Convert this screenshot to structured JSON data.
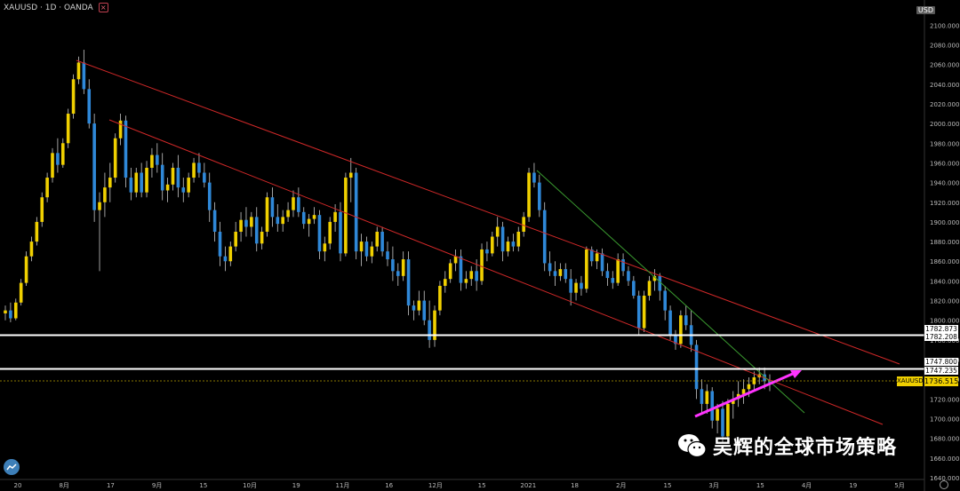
{
  "header": {
    "symbol": "XAUUSD · 1D · OANDA",
    "close_icon": "close-icon"
  },
  "price_axis": {
    "currency_badge": "USD",
    "ticks": [
      "2100.000",
      "2080.000",
      "2060.000",
      "2040.000",
      "2020.000",
      "2000.000",
      "1980.000",
      "1960.000",
      "1940.000",
      "1920.000",
      "1900.000",
      "1880.000",
      "1860.000",
      "1840.000",
      "1820.000",
      "1800.000",
      "1780.000",
      "1760.000",
      "1740.000",
      "1720.000",
      "1700.000",
      "1680.000",
      "1660.000",
      "1640.000"
    ],
    "hline_labels": [
      "1782.873",
      "1782.208",
      "1747.800",
      "1747.235"
    ],
    "current_symbol": "XAUUSD",
    "current_price": "1736.515"
  },
  "time_axis": {
    "ticks": [
      "20",
      "8月",
      "17",
      "9月",
      "15",
      "10月",
      "19",
      "11月",
      "16",
      "12月",
      "15",
      "2021",
      "18",
      "2月",
      "15",
      "3月",
      "15",
      "4月",
      "19",
      "5月"
    ]
  },
  "watermark": {
    "text": "吴辉的全球市场策略",
    "icon": "wechat-icon"
  },
  "colors": {
    "up": "#f0d000",
    "down": "#2f88d8",
    "background": "#000000",
    "channel": "#d02828",
    "trend": "#3a9a30",
    "arrow": "#ff33ff",
    "hline": "#ffffff"
  },
  "chart_data": {
    "type": "candlestick",
    "title": "XAUUSD · 1D · OANDA",
    "ylim": [
      1640,
      2110
    ],
    "candles": [
      [
        1807,
        1815,
        1800,
        1810
      ],
      [
        1810,
        1818,
        1798,
        1802
      ],
      [
        1802,
        1822,
        1800,
        1818
      ],
      [
        1818,
        1842,
        1815,
        1838
      ],
      [
        1838,
        1870,
        1835,
        1865
      ],
      [
        1865,
        1885,
        1860,
        1880
      ],
      [
        1880,
        1905,
        1876,
        1900
      ],
      [
        1900,
        1930,
        1895,
        1925
      ],
      [
        1925,
        1950,
        1920,
        1945
      ],
      [
        1945,
        1975,
        1940,
        1970
      ],
      [
        1970,
        1985,
        1950,
        1958
      ],
      [
        1958,
        1985,
        1955,
        1980
      ],
      [
        1980,
        2015,
        1975,
        2010
      ],
      [
        2010,
        2050,
        2005,
        2045
      ],
      [
        2045,
        2068,
        2040,
        2062
      ],
      [
        2062,
        2075,
        2030,
        2035
      ],
      [
        2035,
        2045,
        1995,
        2000
      ],
      [
        2000,
        2010,
        1900,
        1912
      ],
      [
        1912,
        1930,
        1850,
        1920
      ],
      [
        1920,
        1950,
        1905,
        1935
      ],
      [
        1935,
        1960,
        1920,
        1945
      ],
      [
        1945,
        1990,
        1940,
        1985
      ],
      [
        1985,
        2010,
        1978,
        2003
      ],
      [
        2003,
        2008,
        1935,
        1945
      ],
      [
        1945,
        1955,
        1922,
        1930
      ],
      [
        1930,
        1955,
        1925,
        1950
      ],
      [
        1950,
        1960,
        1925,
        1930
      ],
      [
        1930,
        1962,
        1925,
        1955
      ],
      [
        1955,
        1975,
        1945,
        1968
      ],
      [
        1968,
        1980,
        1950,
        1958
      ],
      [
        1958,
        1970,
        1922,
        1932
      ],
      [
        1932,
        1945,
        1920,
        1938
      ],
      [
        1938,
        1960,
        1932,
        1955
      ],
      [
        1955,
        1968,
        1925,
        1935
      ],
      [
        1935,
        1945,
        1920,
        1930
      ],
      [
        1930,
        1950,
        1925,
        1945
      ],
      [
        1945,
        1965,
        1940,
        1960
      ],
      [
        1960,
        1970,
        1945,
        1950
      ],
      [
        1950,
        1960,
        1935,
        1940
      ],
      [
        1940,
        1950,
        1900,
        1912
      ],
      [
        1912,
        1920,
        1880,
        1890
      ],
      [
        1890,
        1900,
        1855,
        1865
      ],
      [
        1865,
        1875,
        1850,
        1860
      ],
      [
        1860,
        1880,
        1855,
        1875
      ],
      [
        1875,
        1900,
        1870,
        1890
      ],
      [
        1890,
        1910,
        1880,
        1902
      ],
      [
        1902,
        1915,
        1885,
        1895
      ],
      [
        1895,
        1910,
        1885,
        1905
      ],
      [
        1905,
        1915,
        1870,
        1878
      ],
      [
        1878,
        1895,
        1872,
        1890
      ],
      [
        1890,
        1930,
        1885,
        1925
      ],
      [
        1925,
        1935,
        1895,
        1905
      ],
      [
        1905,
        1918,
        1890,
        1898
      ],
      [
        1898,
        1912,
        1890,
        1905
      ],
      [
        1905,
        1920,
        1900,
        1912
      ],
      [
        1912,
        1932,
        1905,
        1925
      ],
      [
        1925,
        1935,
        1905,
        1910
      ],
      [
        1910,
        1915,
        1893,
        1898
      ],
      [
        1898,
        1908,
        1885,
        1903
      ],
      [
        1903,
        1915,
        1898,
        1907
      ],
      [
        1907,
        1912,
        1862,
        1870
      ],
      [
        1870,
        1885,
        1860,
        1878
      ],
      [
        1878,
        1905,
        1872,
        1900
      ],
      [
        1900,
        1918,
        1890,
        1910
      ],
      [
        1910,
        1920,
        1860,
        1868
      ],
      [
        1868,
        1950,
        1865,
        1945
      ],
      [
        1945,
        1965,
        1920,
        1950
      ],
      [
        1950,
        1955,
        1862,
        1870
      ],
      [
        1870,
        1888,
        1855,
        1880
      ],
      [
        1880,
        1885,
        1860,
        1865
      ],
      [
        1865,
        1880,
        1858,
        1875
      ],
      [
        1875,
        1895,
        1870,
        1890
      ],
      [
        1890,
        1895,
        1865,
        1870
      ],
      [
        1870,
        1880,
        1855,
        1862
      ],
      [
        1862,
        1875,
        1840,
        1850
      ],
      [
        1850,
        1858,
        1835,
        1845
      ],
      [
        1845,
        1870,
        1840,
        1862
      ],
      [
        1862,
        1870,
        1805,
        1815
      ],
      [
        1815,
        1820,
        1800,
        1810
      ],
      [
        1810,
        1830,
        1805,
        1820
      ],
      [
        1820,
        1830,
        1795,
        1800
      ],
      [
        1800,
        1820,
        1772,
        1780
      ],
      [
        1780,
        1815,
        1773,
        1810
      ],
      [
        1810,
        1840,
        1805,
        1835
      ],
      [
        1835,
        1850,
        1828,
        1842
      ],
      [
        1842,
        1862,
        1838,
        1858
      ],
      [
        1858,
        1872,
        1850,
        1865
      ],
      [
        1865,
        1872,
        1830,
        1838
      ],
      [
        1838,
        1850,
        1832,
        1842
      ],
      [
        1842,
        1855,
        1835,
        1850
      ],
      [
        1850,
        1862,
        1830,
        1840
      ],
      [
        1840,
        1878,
        1836,
        1872
      ],
      [
        1872,
        1880,
        1860,
        1868
      ],
      [
        1868,
        1890,
        1865,
        1885
      ],
      [
        1885,
        1905,
        1875,
        1895
      ],
      [
        1895,
        1900,
        1860,
        1870
      ],
      [
        1870,
        1885,
        1865,
        1880
      ],
      [
        1880,
        1888,
        1870,
        1875
      ],
      [
        1875,
        1895,
        1870,
        1890
      ],
      [
        1890,
        1910,
        1885,
        1905
      ],
      [
        1905,
        1955,
        1900,
        1950
      ],
      [
        1950,
        1960,
        1935,
        1940
      ],
      [
        1940,
        1948,
        1905,
        1912
      ],
      [
        1912,
        1920,
        1850,
        1858
      ],
      [
        1858,
        1870,
        1845,
        1850
      ],
      [
        1850,
        1860,
        1835,
        1845
      ],
      [
        1845,
        1858,
        1840,
        1852
      ],
      [
        1852,
        1858,
        1838,
        1842
      ],
      [
        1842,
        1852,
        1815,
        1828
      ],
      [
        1828,
        1842,
        1820,
        1838
      ],
      [
        1838,
        1845,
        1825,
        1832
      ],
      [
        1832,
        1875,
        1828,
        1872
      ],
      [
        1872,
        1875,
        1855,
        1860
      ],
      [
        1860,
        1872,
        1852,
        1868
      ],
      [
        1868,
        1873,
        1845,
        1850
      ],
      [
        1850,
        1858,
        1835,
        1843
      ],
      [
        1843,
        1850,
        1832,
        1838
      ],
      [
        1838,
        1868,
        1835,
        1862
      ],
      [
        1862,
        1868,
        1845,
        1850
      ],
      [
        1850,
        1855,
        1835,
        1840
      ],
      [
        1840,
        1845,
        1822,
        1825
      ],
      [
        1825,
        1830,
        1785,
        1792
      ],
      [
        1792,
        1830,
        1788,
        1825
      ],
      [
        1825,
        1845,
        1820,
        1840
      ],
      [
        1840,
        1852,
        1830,
        1845
      ],
      [
        1845,
        1848,
        1820,
        1830
      ],
      [
        1830,
        1835,
        1800,
        1810
      ],
      [
        1810,
        1815,
        1780,
        1785
      ],
      [
        1785,
        1790,
        1770,
        1776
      ],
      [
        1776,
        1810,
        1772,
        1805
      ],
      [
        1805,
        1815,
        1790,
        1795
      ],
      [
        1795,
        1810,
        1768,
        1775
      ],
      [
        1775,
        1780,
        1720,
        1730
      ],
      [
        1730,
        1740,
        1705,
        1715
      ],
      [
        1715,
        1735,
        1705,
        1728
      ],
      [
        1728,
        1732,
        1690,
        1698
      ],
      [
        1698,
        1715,
        1685,
        1710
      ],
      [
        1710,
        1718,
        1675,
        1682
      ],
      [
        1682,
        1720,
        1678,
        1715
      ],
      [
        1715,
        1728,
        1700,
        1720
      ],
      [
        1720,
        1738,
        1712,
        1725
      ],
      [
        1725,
        1740,
        1715,
        1730
      ],
      [
        1730,
        1742,
        1722,
        1735
      ],
      [
        1735,
        1748,
        1728,
        1742
      ],
      [
        1742,
        1752,
        1735,
        1745
      ],
      [
        1745,
        1752,
        1730,
        1738
      ],
      [
        1738,
        1745,
        1728,
        1736.5
      ]
    ],
    "horizontal_lines": [
      1782.873,
      1782.208,
      1747.8,
      1747.235
    ],
    "current_price": 1736.515
  }
}
